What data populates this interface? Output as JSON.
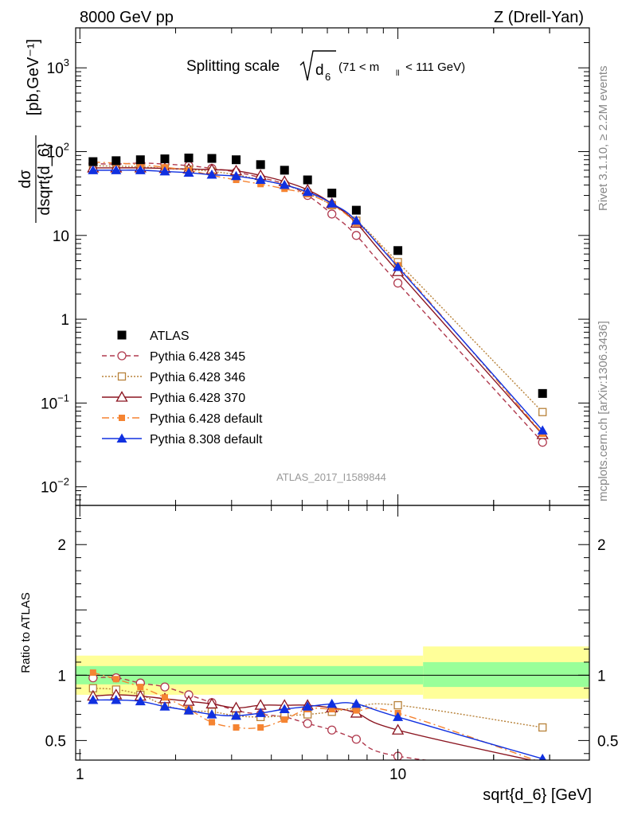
{
  "header": {
    "left": "8000 GeV pp",
    "right": "Z (Drell-Yan)"
  },
  "side_labels": {
    "rivet": "Rivet 3.1.10, ≥ 2.2M events",
    "mcplots": "mcplots.cern.ch [arXiv:1306.3436]"
  },
  "title": {
    "prefix": "Splitting scale",
    "var_sub": "d",
    "var_index": "6",
    "mass_cut_left": "(71 < m",
    "mass_cut_sub": "ll",
    "mass_cut_right": " < 111 GeV)"
  },
  "watermark": "ATLAS_2017_I1589844",
  "ylabel_main": {
    "numerator": "dσ",
    "denominator": "dsqrt{d_6}",
    "units": "[pb,GeV⁻¹]"
  },
  "ylabel_ratio": "Ratio to ATLAS",
  "xlabel": "sqrt{d_6} [GeV]",
  "colors": {
    "atlas": "#000000",
    "p345": "#b03a4e",
    "p346": "#b8823a",
    "p370": "#8b1520",
    "p6def": "#f58432",
    "p8def": "#1030e0",
    "band_inner": "#99ff99",
    "band_outer": "#ffff99"
  },
  "chart_data": {
    "type": "line",
    "x_scale": "log",
    "xlim": [
      0.97,
      40
    ],
    "x_ticks": [
      {
        "v": 1,
        "label": "1"
      },
      {
        "v": 10,
        "label": "10"
      }
    ],
    "main": {
      "y_scale": "log",
      "ylim": [
        0.006,
        3000
      ],
      "y_ticks": [
        {
          "v": 0.01,
          "base": "10",
          "exp": "−2"
        },
        {
          "v": 0.1,
          "base": "10",
          "exp": "−1"
        },
        {
          "v": 1,
          "label": "1"
        },
        {
          "v": 10,
          "label": "10"
        },
        {
          "v": 100,
          "base": "10",
          "exp": "2"
        },
        {
          "v": 1000,
          "base": "10",
          "exp": "3"
        }
      ]
    },
    "ratio": {
      "y_scale": "linear",
      "ylim": [
        0.35,
        2.3
      ],
      "y_ticks": [
        {
          "v": 0.5,
          "label": "0.5"
        },
        {
          "v": 1,
          "label": "1"
        },
        {
          "v": 2,
          "label": "2"
        }
      ]
    },
    "x": [
      1.1,
      1.3,
      1.55,
      1.85,
      2.2,
      2.6,
      3.1,
      3.7,
      4.4,
      5.2,
      6.2,
      7.4,
      10.0,
      28.5
    ],
    "atlas": [
      76,
      78,
      80,
      82,
      84,
      83,
      80,
      70,
      60,
      46,
      32,
      20,
      6.6,
      0.13
    ],
    "bands": [
      {
        "x0": 0.97,
        "x1": 12.0,
        "inner": [
          0.93,
          1.07
        ],
        "outer": [
          0.85,
          1.15
        ]
      },
      {
        "x0": 12.0,
        "x1": 40.0,
        "inner": [
          0.91,
          1.1
        ],
        "outer": [
          0.82,
          1.22
        ]
      }
    ],
    "series": [
      {
        "name": "Pythia 6.428 345",
        "key": "p345",
        "marker": "circle-open",
        "dash": "6,4",
        "values": [
          72,
          71,
          73,
          71,
          68,
          63,
          57,
          49,
          41,
          30,
          18,
          10,
          2.7,
          0.034
        ],
        "ratio": [
          0.98,
          0.98,
          0.94,
          0.91,
          0.85,
          0.79,
          0.73,
          0.7,
          0.68,
          0.63,
          0.58,
          0.51,
          0.38,
          0.26
        ]
      },
      {
        "name": "Pythia 6.428 346",
        "key": "p346",
        "marker": "square-open",
        "dash": "2,2",
        "values": [
          68,
          67,
          66,
          63,
          61,
          58,
          53,
          46,
          40,
          32,
          23,
          15,
          4.8,
          0.078
        ],
        "ratio": [
          0.9,
          0.89,
          0.85,
          0.77,
          0.73,
          0.72,
          0.69,
          0.68,
          0.69,
          0.7,
          0.72,
          0.75,
          0.77,
          0.6
        ]
      },
      {
        "name": "Pythia 6.428 370",
        "key": "p370",
        "marker": "triangle-open",
        "dash": "",
        "values": [
          64,
          64,
          64,
          63,
          62,
          61,
          59,
          52,
          44,
          35,
          24,
          14,
          3.7,
          0.042
        ],
        "ratio": [
          0.84,
          0.85,
          0.84,
          0.82,
          0.8,
          0.78,
          0.75,
          0.77,
          0.77,
          0.77,
          0.75,
          0.71,
          0.58,
          0.33
        ]
      },
      {
        "name": "Pythia 6.428 default",
        "key": "p6def",
        "marker": "square-filled",
        "dash": "9,4,2,4",
        "values": [
          75,
          73,
          70,
          65,
          60,
          52,
          46,
          41,
          36,
          31,
          23,
          14,
          4.4,
          0.043
        ],
        "ratio": [
          1.02,
          0.97,
          0.91,
          0.83,
          0.74,
          0.64,
          0.6,
          0.6,
          0.66,
          0.74,
          0.74,
          0.73,
          0.71,
          0.33
        ]
      },
      {
        "name": "Pythia 8.308 default",
        "key": "p8def",
        "marker": "triangle-filled",
        "dash": "",
        "values": [
          60,
          60,
          60,
          58,
          56,
          53,
          51,
          46,
          40,
          33,
          24,
          15,
          4.2,
          0.047
        ],
        "ratio": [
          0.81,
          0.81,
          0.8,
          0.76,
          0.73,
          0.7,
          0.69,
          0.71,
          0.74,
          0.76,
          0.78,
          0.78,
          0.68,
          0.36
        ]
      }
    ],
    "legend": {
      "position": "left-middle",
      "atlas_label": "ATLAS"
    }
  }
}
